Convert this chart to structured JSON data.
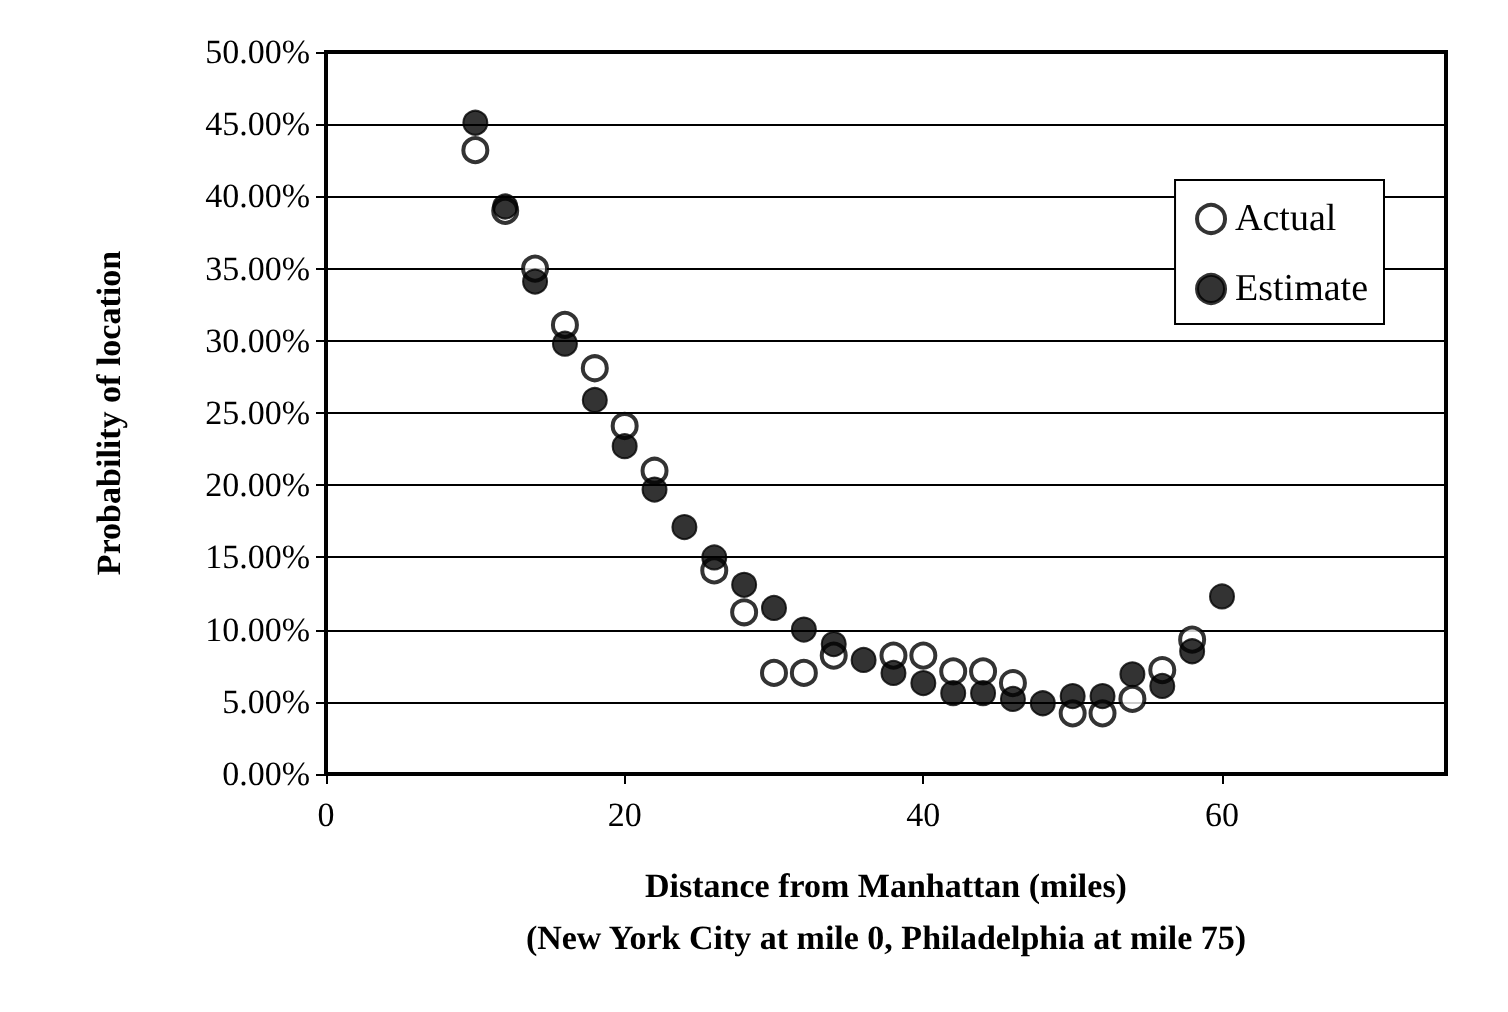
{
  "chart_data": {
    "type": "scatter",
    "xlabel": "Distance from Manhattan (miles)\n(New York City at mile 0, Philadelphia at mile 75)",
    "ylabel": "Probability of location",
    "x": [
      10,
      12,
      14,
      16,
      18,
      20,
      22,
      24,
      26,
      28,
      30,
      32,
      34,
      36,
      38,
      40,
      42,
      44,
      46,
      48,
      50,
      52,
      54,
      56,
      58,
      60
    ],
    "series": [
      {
        "name": "Actual",
        "color": "#000000",
        "values": [
          43.2,
          39.0,
          35.0,
          31.1,
          28.1,
          24.1,
          21.0,
          null,
          14.1,
          11.2,
          7.0,
          7.0,
          8.2,
          null,
          8.2,
          8.2,
          7.1,
          7.1,
          6.3,
          null,
          4.2,
          4.2,
          5.2,
          7.2,
          9.3,
          null
        ]
      },
      {
        "name": "Estimate",
        "color": "#000000",
        "values": [
          45.1,
          39.3,
          34.1,
          29.8,
          25.9,
          22.7,
          19.7,
          17.1,
          15.0,
          13.1,
          11.5,
          10.0,
          9.0,
          7.9,
          7.0,
          6.3,
          5.6,
          5.6,
          5.2,
          4.9,
          5.4,
          5.4,
          6.9,
          6.1,
          8.5,
          12.3
        ]
      }
    ],
    "xlim": [
      0,
      75
    ],
    "xticks": [
      0,
      20,
      40,
      60
    ],
    "ylim": [
      0,
      50
    ],
    "yticks": [
      {
        "value": 0,
        "label": "0.00%"
      },
      {
        "value": 5,
        "label": "5.00%"
      },
      {
        "value": 10,
        "label": "10.00%"
      },
      {
        "value": 15,
        "label": "15.00%"
      },
      {
        "value": 20,
        "label": "20.00%"
      },
      {
        "value": 25,
        "label": "25.00%"
      },
      {
        "value": 30,
        "label": "30.00%"
      },
      {
        "value": 35,
        "label": "35.00%"
      },
      {
        "value": 40,
        "label": "40.00%"
      },
      {
        "value": 45,
        "label": "45.00%"
      },
      {
        "value": 50,
        "label": "50.00%"
      }
    ],
    "grid": "y",
    "legend": "top right",
    "marker": "circle"
  }
}
